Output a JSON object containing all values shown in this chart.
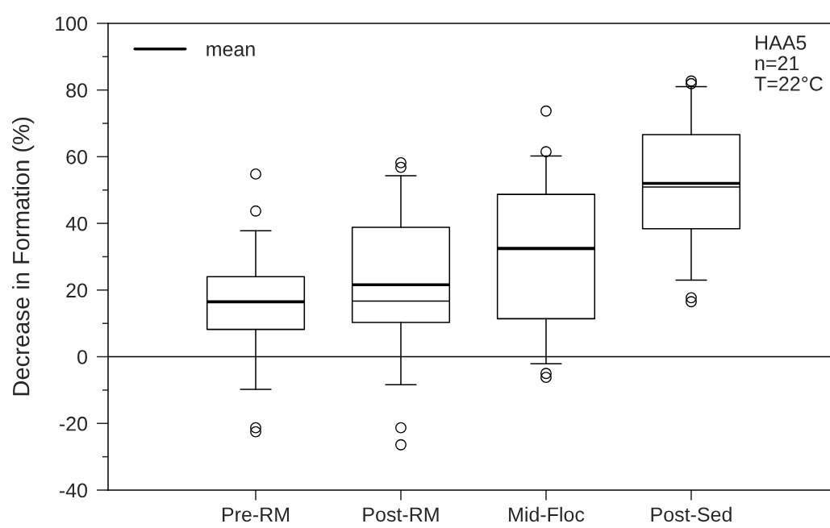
{
  "chart_data": {
    "type": "box",
    "ylabel": "Decrease in Formation (%)",
    "categories": [
      "Pre-RM",
      "Post-RM",
      "Mid-Floc",
      "Post-Sed"
    ],
    "series": [
      {
        "name": "mean",
        "color": "#000000",
        "boxes": [
          {
            "low": -9.8,
            "q1": 8.2,
            "median": 16.2,
            "q3": 24,
            "high": 37.8,
            "mean": 16.5,
            "outliers": [
              54.8,
              43.7,
              -21.3,
              -22.5
            ]
          },
          {
            "low": -8.4,
            "q1": 10.3,
            "median": 16.7,
            "q3": 38.8,
            "high": 54.3,
            "mean": 21.6,
            "outliers": [
              58.2,
              56.8,
              -21.3,
              -26.4
            ]
          },
          {
            "low": -2.1,
            "q1": 11.4,
            "median": 32.2,
            "q3": 48.7,
            "high": 60.2,
            "mean": 32.5,
            "outliers": [
              73.7,
              61.5,
              -5,
              -6.2
            ]
          },
          {
            "low": 23,
            "q1": 38.4,
            "median": 50.9,
            "q3": 66.6,
            "high": 81,
            "mean": 52,
            "outliers": [
              82.7,
              81.9,
              17.7,
              16.5
            ]
          }
        ]
      }
    ],
    "ylim": [
      -40,
      100
    ],
    "yticks": [
      -40,
      {
        "value": -30,
        "label": null
      },
      -20,
      {
        "value": -10,
        "label": null
      },
      0,
      {
        "value": 10,
        "label": null
      },
      20,
      {
        "value": 30,
        "label": null
      },
      40,
      {
        "value": 50,
        "label": null
      },
      60,
      {
        "value": 70,
        "label": null
      },
      80,
      {
        "value": 90,
        "label": null
      },
      100
    ],
    "ref_lines": [
      {
        "axis": "y",
        "value": 0,
        "color": "#000000"
      }
    ],
    "annotations": [
      "HAA5\nn=21\nT=22°C"
    ],
    "legend": "top left",
    "marker": "circle"
  }
}
